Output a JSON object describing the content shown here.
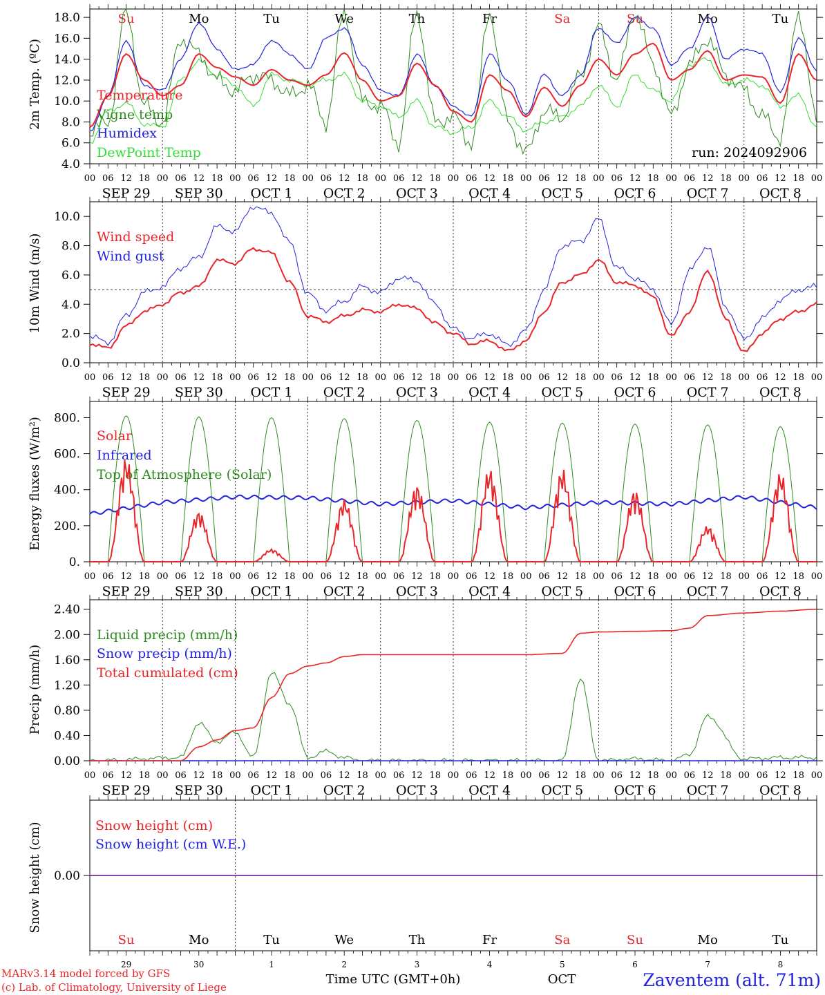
{
  "days": {
    "date_labels": [
      "SEP 29",
      "SEP 30",
      "OCT  1",
      "OCT  2",
      "OCT  3",
      "OCT  4",
      "OCT  5",
      "OCT  6",
      "OCT  7",
      "OCT  8"
    ],
    "weekdays": [
      "Su",
      "Mo",
      "Tu",
      "We",
      "Th",
      "Fr",
      "Sa",
      "Su",
      "Mo",
      "Tu"
    ],
    "weekday_colors": [
      "#e8262a",
      "#000000",
      "#000000",
      "#000000",
      "#000000",
      "#000000",
      "#e8262a",
      "#e8262a",
      "#000000",
      "#000000"
    ],
    "day_numbers": [
      "29",
      "30",
      "1",
      "2",
      "3",
      "4",
      "5",
      "6",
      "7",
      "8"
    ],
    "hour_ticks": [
      "00",
      "06",
      "12",
      "18"
    ],
    "end_hour": "00"
  },
  "footer": {
    "model_line1": "MARv3.14 model forced by GFS",
    "model_line2": "(c) Lab. of Climatology, University of Liege",
    "time_axis_label": "Time UTC (GMT+0h)",
    "month_label": "OCT",
    "station": "Zaventem (alt. 71m)"
  },
  "colors": {
    "red": "#e8262a",
    "dark_green": "#2e8b1f",
    "blue": "#2222dd",
    "light_green": "#33dd33",
    "purple": "#7a2a9a"
  },
  "chart_data": [
    {
      "type": "line",
      "ylabel": "2m Temp. (ºC)",
      "ylim": [
        4,
        18.8
      ],
      "yticks": [
        "4.0",
        "6.0",
        "8.0",
        "10.0",
        "12.0",
        "14.0",
        "16.0",
        "18.0"
      ],
      "ytick_values": [
        4,
        6,
        8,
        10,
        12,
        14,
        16,
        18
      ],
      "annotation": "run: 2024092906",
      "x_hours_from_sep29_00": [
        0,
        6,
        12,
        18,
        24,
        30,
        36,
        42,
        48,
        54,
        60,
        66,
        72,
        78,
        84,
        90,
        96,
        102,
        108,
        114,
        120,
        126,
        132,
        138,
        144,
        150,
        156,
        162,
        168,
        174,
        180,
        186,
        192,
        198,
        204,
        210,
        216,
        222,
        228,
        234,
        240
      ],
      "series": [
        {
          "name": "Temperature",
          "color": "#e8262a",
          "values": [
            7.5,
            10.5,
            14.5,
            12.0,
            10.5,
            11.5,
            14.5,
            13.2,
            12.3,
            11.5,
            13.0,
            12.0,
            11.5,
            12.5,
            14.6,
            12.0,
            10.0,
            10.5,
            13.6,
            11.5,
            9.0,
            8.0,
            12.5,
            11.0,
            8.5,
            11.3,
            9.5,
            11.5,
            14.0,
            12.5,
            14.5,
            15.5,
            12.0,
            13.0,
            14.8,
            12.0,
            12.5,
            12.3,
            9.8,
            14.5,
            12.0
          ]
        },
        {
          "name": "Vigne temp",
          "color": "#2e8b1f",
          "values": [
            7.0,
            8.0,
            18.5,
            9.5,
            8.0,
            16.0,
            14.5,
            12.0,
            11.0,
            12.5,
            12.0,
            10.5,
            11.5,
            8.0,
            18.5,
            10.0,
            9.5,
            6.0,
            18.5,
            8.0,
            8.5,
            6.0,
            18.5,
            8.0,
            5.0,
            9.0,
            8.5,
            12.5,
            17.0,
            12.0,
            18.5,
            13.5,
            8.5,
            13.5,
            16.0,
            12.5,
            11.0,
            8.5,
            6.5,
            18.5,
            8.0
          ]
        },
        {
          "name": "Humidex",
          "color": "#2222dd",
          "values": [
            7.0,
            10.5,
            15.8,
            11.5,
            11.0,
            14.0,
            17.5,
            15.0,
            13.0,
            13.5,
            15.8,
            14.5,
            13.0,
            16.0,
            17.0,
            13.5,
            11.0,
            10.5,
            14.5,
            11.5,
            9.5,
            8.5,
            14.5,
            12.0,
            8.7,
            12.5,
            10.5,
            12.5,
            17.0,
            15.5,
            18.0,
            17.0,
            13.5,
            15.0,
            18.0,
            14.0,
            15.0,
            14.5,
            10.8,
            16.0,
            13.0
          ]
        },
        {
          "name": "DewPoint Temp",
          "color": "#33dd33",
          "values": [
            6.0,
            9.0,
            9.8,
            7.8,
            7.5,
            12.0,
            13.8,
            12.5,
            11.5,
            9.5,
            12.5,
            12.0,
            11.5,
            12.0,
            12.5,
            10.0,
            9.5,
            8.5,
            10.0,
            7.5,
            7.0,
            7.5,
            10.0,
            8.5,
            7.2,
            8.0,
            8.5,
            9.5,
            11.5,
            9.5,
            12.5,
            11.0,
            10.0,
            13.5,
            14.0,
            11.5,
            12.0,
            11.5,
            9.5,
            10.5,
            7.5
          ]
        }
      ]
    },
    {
      "type": "line",
      "ylabel": "10m Wind (m/s)",
      "ylim": [
        0,
        11
      ],
      "yticks": [
        "0.0",
        "2.0",
        "4.0",
        "6.0",
        "8.0",
        "10.0"
      ],
      "ytick_values": [
        0,
        2,
        4,
        6,
        8,
        10
      ],
      "reference_line": 5,
      "x_hours_from_sep29_00": [
        0,
        6,
        12,
        18,
        24,
        30,
        36,
        42,
        48,
        54,
        60,
        66,
        72,
        78,
        84,
        90,
        96,
        102,
        108,
        114,
        120,
        126,
        132,
        138,
        144,
        150,
        156,
        162,
        168,
        174,
        180,
        186,
        192,
        198,
        204,
        210,
        216,
        222,
        228,
        234,
        240
      ],
      "series": [
        {
          "name": "Wind speed",
          "color": "#e8262a",
          "values": [
            1.3,
            1.0,
            2.5,
            3.5,
            4.0,
            4.8,
            5.2,
            7.0,
            6.8,
            7.8,
            7.5,
            5.5,
            3.2,
            2.8,
            3.2,
            3.6,
            3.5,
            4.0,
            3.7,
            2.7,
            2.0,
            1.3,
            1.5,
            0.8,
            1.5,
            3.5,
            5.5,
            6.0,
            7.0,
            5.5,
            5.3,
            4.5,
            1.8,
            3.5,
            6.3,
            3.0,
            0.7,
            2.0,
            3.0,
            3.5,
            4.0
          ]
        },
        {
          "name": "Wind gust",
          "color": "#2222dd",
          "values": [
            1.8,
            1.4,
            3.2,
            4.8,
            5.2,
            6.5,
            7.2,
            9.3,
            9.0,
            10.7,
            10.2,
            8.2,
            4.7,
            3.6,
            4.2,
            5.2,
            4.8,
            5.8,
            5.6,
            4.0,
            2.3,
            1.7,
            2.0,
            1.2,
            2.2,
            5.0,
            8.0,
            8.3,
            9.8,
            6.5,
            5.8,
            5.0,
            2.6,
            6.3,
            8.0,
            3.8,
            1.6,
            3.0,
            4.3,
            5.0,
            5.2
          ]
        }
      ]
    },
    {
      "type": "line",
      "ylabel": "Energy fluxes (W/m²)",
      "ylim": [
        0,
        890
      ],
      "yticks": [
        "0.",
        "200.",
        "400.",
        "600.",
        "800."
      ],
      "ytick_values": [
        0,
        200,
        400,
        600,
        800
      ],
      "solar_peaks": [
        580,
        280,
        70,
        350,
        430,
        520,
        520,
        400,
        200,
        500
      ],
      "toa_peaks": [
        810,
        805,
        800,
        795,
        785,
        775,
        770,
        765,
        760,
        750
      ],
      "infrared_daily": [
        265,
        330,
        360,
        355,
        320,
        340,
        300,
        330,
        320,
        360,
        300
      ],
      "series": [
        {
          "name": "Solar",
          "color": "#e8262a"
        },
        {
          "name": "Infrared",
          "color": "#2222dd"
        },
        {
          "name": "Top of Atmosphere (Solar)",
          "color": "#2e8b1f"
        }
      ]
    },
    {
      "type": "line",
      "ylabel": "Precip (mm/h)",
      "ylim": [
        0,
        2.55
      ],
      "yticks": [
        "0.00",
        "0.40",
        "0.80",
        "1.20",
        "1.60",
        "2.00",
        "2.40"
      ],
      "ytick_values": [
        0,
        0.4,
        0.8,
        1.2,
        1.6,
        2.0,
        2.4
      ],
      "x_hours_from_sep29_00": [
        0,
        30,
        36,
        42,
        48,
        54,
        60,
        66,
        72,
        78,
        84,
        90,
        96,
        120,
        144,
        156,
        162,
        168,
        180,
        192,
        198,
        204,
        216,
        228,
        240
      ],
      "series": [
        {
          "name": "Liquid precip (mm/h)",
          "color": "#2e8b1f",
          "values": [
            0,
            0.05,
            0.6,
            0.3,
            0.45,
            0.05,
            1.4,
            0.9,
            0.05,
            0.15,
            0.05,
            0,
            0,
            0,
            0,
            0,
            1.3,
            0,
            0.03,
            0,
            0.1,
            0.7,
            0.03,
            0.05,
            0.05
          ]
        },
        {
          "name": "Snow precip (mm/h)",
          "color": "#2222dd",
          "values": [
            0,
            0,
            0,
            0,
            0,
            0,
            0,
            0,
            0,
            0,
            0,
            0,
            0,
            0,
            0,
            0,
            0,
            0,
            0,
            0,
            0,
            0,
            0,
            0,
            0
          ]
        },
        {
          "name": "Total cumulated (cm)",
          "color": "#e8262a",
          "values": [
            0,
            0,
            0.22,
            0.33,
            0.48,
            0.52,
            1.0,
            1.38,
            1.5,
            1.55,
            1.65,
            1.68,
            1.68,
            1.68,
            1.68,
            1.7,
            2.02,
            2.04,
            2.05,
            2.06,
            2.1,
            2.3,
            2.34,
            2.37,
            2.4
          ]
        }
      ]
    },
    {
      "type": "line",
      "ylabel": "Snow height (cm)",
      "ylim": [
        -1,
        1
      ],
      "yticks": [
        "0.00"
      ],
      "ytick_values": [
        0
      ],
      "x_hours_from_sep29_00": [
        0,
        240
      ],
      "series": [
        {
          "name": "Snow height (cm)",
          "color": "#e8262a",
          "values": [
            0,
            0
          ]
        },
        {
          "name": "Snow height (cm W.E.)",
          "color": "#2222dd",
          "values": [
            0,
            0
          ]
        }
      ]
    }
  ]
}
